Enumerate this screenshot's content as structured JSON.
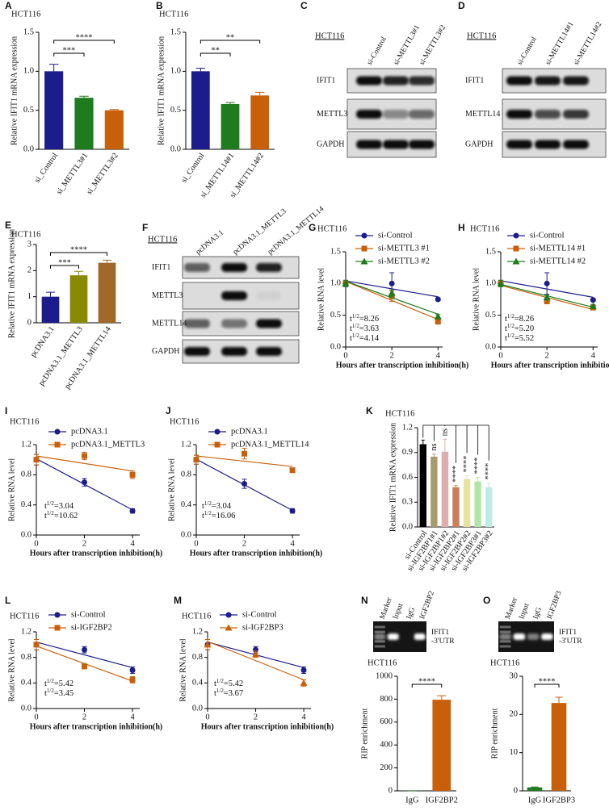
{
  "chart_data": [
    {
      "letter": "A",
      "type": "bar",
      "title": "HCT116",
      "ylabel": "Relative IFIT1 mRNA expression",
      "categories": [
        "si_Control",
        "si_METTL3#1",
        "si_METTL3#2"
      ],
      "values": [
        1.0,
        0.66,
        0.5
      ],
      "errors": [
        0.09,
        0.02,
        0.01
      ],
      "colors": [
        "#1c1c8c",
        "#1e7b1e",
        "#c8600a"
      ],
      "ylim": [
        0,
        1.5
      ],
      "yticks": [
        {
          "value": 0,
          "label": "0.0"
        },
        {
          "value": 0.5,
          "label": "0.5"
        },
        {
          "value": 1,
          "label": "1.0"
        },
        {
          "value": 1.5,
          "label": "1.5"
        }
      ],
      "significance": [
        {
          "between": [
            "si_Control",
            "si_METTL3#1"
          ],
          "label": "***"
        },
        {
          "between": [
            "si_Control",
            "si_METTL3#2"
          ],
          "label": "****"
        }
      ]
    },
    {
      "letter": "B",
      "type": "bar",
      "title": "HCT116",
      "ylabel": "Relative IFIT1 mRNA expression",
      "categories": [
        "si_Control",
        "si_METTL14#1",
        "si_METTL14#2"
      ],
      "values": [
        1.0,
        0.58,
        0.69
      ],
      "errors": [
        0.04,
        0.02,
        0.04
      ],
      "colors": [
        "#1c1c8c",
        "#1e7b1e",
        "#c8600a"
      ],
      "ylim": [
        0,
        1.5
      ],
      "yticks": [
        {
          "value": 0,
          "label": "0.0"
        },
        {
          "value": 0.5,
          "label": "0.5"
        },
        {
          "value": 1,
          "label": "1.0"
        },
        {
          "value": 1.5,
          "label": "1.5"
        }
      ],
      "significance": [
        {
          "between": [
            "si_Control",
            "si_METTL14#1"
          ],
          "label": "**"
        },
        {
          "between": [
            "si_Control",
            "si_METTL14#2"
          ],
          "label": "**"
        }
      ]
    },
    {
      "letter": "E",
      "type": "bar",
      "title": "HCT116",
      "ylabel": "Relative IFIT1 mRNA expression",
      "categories": [
        "pcDNA3.1",
        "pcDNA3.1_METTL3",
        "pcDNA3.1_METTL14"
      ],
      "values": [
        1.0,
        1.82,
        2.3
      ],
      "errors": [
        0.17,
        0.15,
        0.1
      ],
      "colors": [
        "#1c1c8c",
        "#8a8a00",
        "#a0692a"
      ],
      "ylim": [
        0,
        3
      ],
      "yticks": [
        0,
        1,
        2,
        3
      ],
      "significance": [
        {
          "between": [
            "pcDNA3.1",
            "pcDNA3.1_METTL3"
          ],
          "label": "***"
        },
        {
          "between": [
            "pcDNA3.1",
            "pcDNA3.1_METTL14"
          ],
          "label": "****"
        }
      ]
    },
    {
      "letter": "G",
      "type": "line",
      "title": "HCT116",
      "xlabel": "Hours after transcription inhibition(h)",
      "ylabel": "Relative RNA level",
      "x": [
        0,
        2,
        4
      ],
      "xlim": [
        0,
        4.2
      ],
      "xticks": [
        0,
        2,
        4
      ],
      "ylim": [
        0,
        1.5
      ],
      "yticks": [
        {
          "value": 0,
          "label": "0.0"
        },
        {
          "value": 0.5,
          "label": "0.5"
        },
        {
          "value": 1,
          "label": "1.0"
        },
        {
          "value": 1.5,
          "label": "1.5"
        }
      ],
      "series": [
        {
          "name": "si-Control",
          "color": "#1c1c8c",
          "marker": "circle",
          "values": [
            1.0,
            1.0,
            0.75
          ],
          "errors": [
            0.05,
            0.17,
            0.02
          ]
        },
        {
          "name": "si-METTL3 #1",
          "color": "#c8600a",
          "marker": "square",
          "values": [
            1.0,
            0.8,
            0.4
          ],
          "errors": [
            0.05,
            0.08,
            0.04
          ]
        },
        {
          "name": "si-METTL3 #2",
          "color": "#1e7b1e",
          "marker": "triangle",
          "values": [
            1.0,
            0.85,
            0.48
          ],
          "errors": [
            0.05,
            0.05,
            0.03
          ]
        }
      ],
      "annotations": [
        {
          "base": "t",
          "sup": "1/2",
          "text": "=8.26",
          "color": "#1c1c8c"
        },
        {
          "base": "t",
          "sup": "1/2",
          "text": "=3.63",
          "color": "#c8600a"
        },
        {
          "base": "t",
          "sup": "1/2",
          "text": "=4.14",
          "color": "#1e7b1e"
        }
      ]
    },
    {
      "letter": "H",
      "type": "line",
      "title": "HCT116",
      "xlabel": "Hours after transcription inhibition(h)",
      "ylabel": "Relative RNA level",
      "x": [
        0,
        2,
        4
      ],
      "xlim": [
        0,
        4.2
      ],
      "xticks": [
        0,
        2,
        4
      ],
      "ylim": [
        0,
        1.5
      ],
      "yticks": [
        {
          "value": 0,
          "label": "0.0"
        },
        {
          "value": 0.5,
          "label": "0.5"
        },
        {
          "value": 1,
          "label": "1.0"
        },
        {
          "value": 1.5,
          "label": "1.5"
        }
      ],
      "series": [
        {
          "name": "si-Control",
          "color": "#1c1c8c",
          "marker": "circle",
          "values": [
            1.0,
            1.0,
            0.74
          ],
          "errors": [
            0.05,
            0.17,
            0.02
          ]
        },
        {
          "name": "si-METTL14 #1",
          "color": "#c8600a",
          "marker": "square",
          "values": [
            1.0,
            0.72,
            0.62
          ],
          "errors": [
            0.05,
            0.04,
            0.03
          ]
        },
        {
          "name": "si-METTL14 #2",
          "color": "#1e7b1e",
          "marker": "triangle",
          "values": [
            1.0,
            0.78,
            0.64
          ],
          "errors": [
            0.05,
            0.04,
            0.03
          ]
        }
      ],
      "annotations": [
        {
          "base": "t",
          "sup": "1/2",
          "text": "=8.26",
          "color": "#1c1c8c"
        },
        {
          "base": "t",
          "sup": "1/2",
          "text": "=5.20",
          "color": "#c8600a"
        },
        {
          "base": "t",
          "sup": "1/2",
          "text": "=5.52",
          "color": "#1e7b1e"
        }
      ]
    },
    {
      "letter": "I",
      "type": "line",
      "title": "HCT116",
      "xlabel": "Hours after transcription inhibition(h)",
      "ylabel": "Relative RNA level",
      "x": [
        0,
        2,
        4
      ],
      "xlim": [
        0,
        4.3
      ],
      "xticks": [
        0,
        2,
        4
      ],
      "ylim": [
        0,
        1.2
      ],
      "yticks": [
        {
          "value": 0,
          "label": "0.0"
        },
        {
          "value": 0.4,
          "label": "0.4"
        },
        {
          "value": 0.8,
          "label": "0.8"
        },
        {
          "value": 1.2,
          "label": "1.2"
        }
      ],
      "series": [
        {
          "name": "pcDNA3.1",
          "color": "#1c1c8c",
          "marker": "circle",
          "values": [
            1.0,
            0.7,
            0.32
          ],
          "errors": [
            0.07,
            0.05,
            0.03
          ]
        },
        {
          "name": "pcDNA3.1_METTL3",
          "color": "#c8600a",
          "marker": "square",
          "values": [
            1.0,
            1.05,
            0.8
          ],
          "errors": [
            0.07,
            0.05,
            0.05
          ]
        }
      ],
      "annotations": [
        {
          "base": "t",
          "sup": "1/2",
          "text": "=3.04",
          "color": "#1c1c8c"
        },
        {
          "base": "t",
          "sup": "1/2",
          "text": "=10.62",
          "color": "#c8600a"
        }
      ]
    },
    {
      "letter": "J",
      "type": "line",
      "title": "HCT116",
      "xlabel": "Hours after transcription inhibition(h)",
      "ylabel": "Relative RNA level",
      "x": [
        0,
        2,
        4
      ],
      "xlim": [
        0,
        4.3
      ],
      "xticks": [
        0,
        2,
        4
      ],
      "ylim": [
        0,
        1.2
      ],
      "yticks": [
        {
          "value": 0,
          "label": "0.0"
        },
        {
          "value": 0.4,
          "label": "0.4"
        },
        {
          "value": 0.8,
          "label": "0.8"
        },
        {
          "value": 1.2,
          "label": "1.2"
        }
      ],
      "series": [
        {
          "name": "pcDNA3.1",
          "color": "#1c1c8c",
          "marker": "circle",
          "values": [
            1.0,
            0.68,
            0.32
          ],
          "errors": [
            0.06,
            0.06,
            0.03
          ]
        },
        {
          "name": "pcDNA3.1_METTL14",
          "color": "#c8600a",
          "marker": "square",
          "values": [
            1.0,
            1.08,
            0.86
          ],
          "errors": [
            0.06,
            0.07,
            0.03
          ]
        }
      ],
      "annotations": [
        {
          "base": "t",
          "sup": "1/2",
          "text": "=3.04",
          "color": "#1c1c8c"
        },
        {
          "base": "t",
          "sup": "1/2",
          "text": "=16.06",
          "color": "#c8600a"
        }
      ]
    },
    {
      "letter": "K",
      "type": "bar",
      "title": "HCT116",
      "ylabel": "Relative IFIT1 mRNA expression",
      "categories": [
        "si-Control",
        "si-IGF2BP1#1",
        "si-IGF2BP1#2",
        "si-IGF2BP2#1",
        "si-IGF2BP2#2",
        "si-IGF2BP3#1",
        "si-IGF2BP3#2"
      ],
      "values": [
        1.0,
        0.85,
        0.91,
        0.48,
        0.58,
        0.55,
        0.48
      ],
      "errors": [
        0.05,
        0.03,
        0.15,
        0.02,
        0.04,
        0.05,
        0.05
      ],
      "colors": [
        "#000000",
        "#a89c6c",
        "#dcaeae",
        "#c9805a",
        "#e6e2a0",
        "#b2e6a8",
        "#bfece2"
      ],
      "ylim": [
        0,
        1.2
      ],
      "yticks": [
        {
          "value": 0,
          "label": "0.0"
        },
        {
          "value": 0.3,
          "label": "0.3"
        },
        {
          "value": 0.6,
          "label": "0.6"
        },
        {
          "value": 0.9,
          "label": "0.9"
        },
        {
          "value": 1.2,
          "label": "1.2"
        }
      ],
      "annotations": [
        {
          "category": "si-IGF2BP1#1",
          "text": "ns"
        },
        {
          "category": "si-IGF2BP1#2",
          "text": "ns"
        },
        {
          "category": "si-IGF2BP2#1",
          "text": "****"
        },
        {
          "category": "si-IGF2BP2#2",
          "text": "****"
        },
        {
          "category": "si-IGF2BP3#1",
          "text": "****"
        },
        {
          "category": "si-IGF2BP3#2",
          "text": "****"
        }
      ]
    },
    {
      "letter": "L",
      "type": "line",
      "title": "HCT116",
      "xlabel": "Hours after transcription inhibition(h)",
      "ylabel": "Relative RNA level",
      "x": [
        0,
        2,
        4
      ],
      "xlim": [
        0,
        4.3
      ],
      "xticks": [
        0,
        2,
        4
      ],
      "ylim": [
        0,
        1.2
      ],
      "yticks": [
        {
          "value": 0,
          "label": "0.0"
        },
        {
          "value": 0.4,
          "label": "0.4"
        },
        {
          "value": 0.8,
          "label": "0.8"
        },
        {
          "value": 1.2,
          "label": "1.2"
        }
      ],
      "series": [
        {
          "name": "si-Control",
          "color": "#1c1c8c",
          "marker": "circle",
          "values": [
            1.0,
            0.92,
            0.6
          ],
          "errors": [
            0.08,
            0.05,
            0.05
          ]
        },
        {
          "name": "si-IGF2BP2",
          "color": "#c8600a",
          "marker": "square",
          "values": [
            1.0,
            0.66,
            0.45
          ],
          "errors": [
            0.08,
            0.04,
            0.05
          ]
        }
      ],
      "annotations": [
        {
          "base": "t",
          "sup": "1/2",
          "text": "=5.42",
          "color": "#1c1c8c"
        },
        {
          "base": "t",
          "sup": "1/2",
          "text": "=3.45",
          "color": "#c8600a"
        }
      ]
    },
    {
      "letter": "M",
      "type": "line",
      "title": "HCT116",
      "xlabel": "Hours after transcription inhibition(h)",
      "ylabel": "Relative RNA level",
      "x": [
        0,
        2,
        4
      ],
      "xlim": [
        0,
        4.3
      ],
      "xticks": [
        0,
        2,
        4
      ],
      "ylim": [
        0,
        1.2
      ],
      "yticks": [
        {
          "value": 0,
          "label": "0.0"
        },
        {
          "value": 0.4,
          "label": "0.4"
        },
        {
          "value": 0.8,
          "label": "0.8"
        },
        {
          "value": 1.2,
          "label": "1.2"
        }
      ],
      "series": [
        {
          "name": "si-Control",
          "color": "#1c1c8c",
          "marker": "circle",
          "values": [
            1.0,
            0.92,
            0.6
          ],
          "errors": [
            0.08,
            0.05,
            0.05
          ]
        },
        {
          "name": "si-IGF2BP3",
          "color": "#c8600a",
          "marker": "triangle",
          "values": [
            1.0,
            0.85,
            0.4
          ],
          "errors": [
            0.08,
            0.05,
            0.05
          ]
        }
      ],
      "annotations": [
        {
          "base": "t",
          "sup": "1/2",
          "text": "=5.42",
          "color": "#1c1c8c"
        },
        {
          "base": "t",
          "sup": "1/2",
          "text": "=3.67",
          "color": "#c8600a"
        }
      ]
    },
    {
      "letter": "N",
      "type": "bar",
      "title": "HCT116",
      "ylabel": "RIP enrichment",
      "categories": [
        "IgG",
        "IGF2BP2"
      ],
      "values": [
        1,
        795
      ],
      "errors": [
        0,
        35
      ],
      "colors": [
        "#1e7b1e",
        "#c8600a"
      ],
      "ylim": [
        0,
        1000
      ],
      "yticks": [
        0,
        200,
        400,
        600,
        800,
        1000
      ],
      "significance": [
        {
          "between": [
            "IgG",
            "IGF2BP2"
          ],
          "label": "****"
        }
      ],
      "gel_lanes": [
        "Marker",
        "Input",
        "IgG",
        "IGF2BP2"
      ],
      "gel_band_label": [
        "IFIT1",
        "-3'UTR"
      ]
    },
    {
      "letter": "O",
      "type": "bar",
      "title": "HCT116",
      "ylabel": "RIP enrichment",
      "categories": [
        "IgG",
        "IGF2BP3"
      ],
      "values": [
        0.9,
        23
      ],
      "errors": [
        0.1,
        1.5
      ],
      "colors": [
        "#1e7b1e",
        "#c8600a"
      ],
      "ylim": [
        0,
        30
      ],
      "yticks": [
        0,
        10,
        20,
        30
      ],
      "significance": [
        {
          "between": [
            "IgG",
            "IGF2BP3"
          ],
          "label": "****"
        }
      ],
      "gel_lanes": [
        "Marker",
        "Input",
        "IgG",
        "IGF2BP3"
      ],
      "gel_band_label": [
        "IFIT1",
        "-3'UTR"
      ]
    }
  ],
  "blots": [
    {
      "letter": "C",
      "cell_line": "HCT116",
      "lanes": [
        "si-Control",
        "si-METTL3#1",
        "si-METTL3#2"
      ],
      "rows": [
        "IFIT1",
        "METTL3",
        "GAPDH"
      ]
    },
    {
      "letter": "D",
      "cell_line": "HCT116",
      "lanes": [
        "si-Control",
        "si-METTL14#1",
        "si-METTL14#2"
      ],
      "rows": [
        "IFIT1",
        "METTL14",
        "GAPDH"
      ]
    },
    {
      "letter": "F",
      "cell_line": "HCT116",
      "lanes": [
        "pcDNA3.1",
        "pcDNA3.1_METTL3",
        "pcDNA3.1_METTL14"
      ],
      "rows": [
        "IFIT1",
        "METTL3",
        "METTL14",
        "GAPDH"
      ]
    }
  ]
}
